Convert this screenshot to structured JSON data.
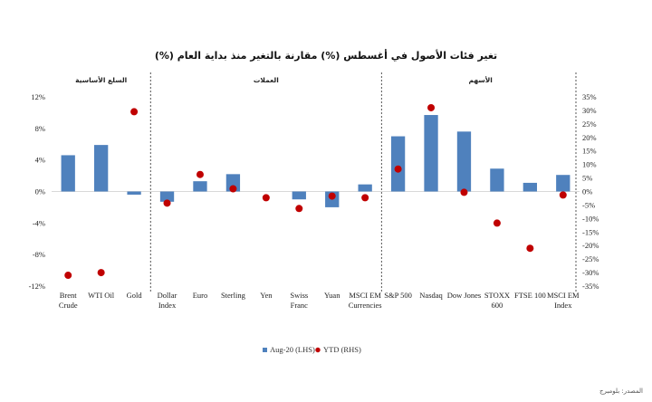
{
  "chart_data": {
    "type": "bar",
    "title": "تغير فئات الأصول في أغسطس (%) مقارنة بالتغير منذ بداية العام (%)",
    "source": "المصدر: بلومبرج",
    "sections": [
      {
        "label": "السلع الأساسية",
        "range": [
          0,
          2
        ]
      },
      {
        "label": "العملات",
        "range": [
          3,
          9
        ]
      },
      {
        "label": "الأسهم",
        "range": [
          10,
          15
        ]
      }
    ],
    "categories": [
      [
        "Brent",
        "Crude"
      ],
      [
        "WTI Oil"
      ],
      [
        "Gold"
      ],
      [
        "Dollar",
        "Index"
      ],
      [
        "Euro"
      ],
      [
        "Sterling"
      ],
      [
        "Yen"
      ],
      [
        "Swiss",
        "Franc"
      ],
      [
        "Yuan"
      ],
      [
        "MSCI EM",
        "Currencies"
      ],
      [
        "S&P 500"
      ],
      [
        "Nasdaq"
      ],
      [
        "Dow Jones"
      ],
      [
        "STOXX",
        "600"
      ],
      [
        "FTSE 100"
      ],
      [
        "MSCI EM",
        "Index"
      ]
    ],
    "series": [
      {
        "name": "Aug-20 (LHS)",
        "type": "bar",
        "axis": "left",
        "color": "#4f81bd",
        "values": [
          4.6,
          5.9,
          -0.4,
          -1.3,
          1.3,
          2.2,
          0.0,
          -1.0,
          -2.0,
          0.9,
          7.0,
          9.7,
          7.6,
          2.9,
          1.1,
          2.1
        ]
      },
      {
        "name": "YTD (RHS)",
        "type": "scatter",
        "axis": "right",
        "color": "#c00000",
        "values": [
          -31,
          -30,
          29.5,
          -4.3,
          6.3,
          1.0,
          -2.3,
          -6.3,
          -1.7,
          -2.3,
          8.3,
          31,
          -0.3,
          -11.7,
          -21,
          -1.3
        ]
      }
    ],
    "left_axis": {
      "min": -12,
      "max": 12,
      "step": 4,
      "tick_labels": [
        "-12%",
        "-8%",
        "-4%",
        "0%",
        "4%",
        "8%",
        "12%"
      ]
    },
    "right_axis": {
      "min": -35,
      "max": 35,
      "step": 5,
      "tick_labels": [
        "-35%",
        "-30%",
        "-25%",
        "-20%",
        "-15%",
        "-10%",
        "-5%",
        "0%",
        "5%",
        "10%",
        "15%",
        "20%",
        "25%",
        "30%",
        "35%"
      ]
    },
    "legend_position": "bottom",
    "grid": false
  }
}
